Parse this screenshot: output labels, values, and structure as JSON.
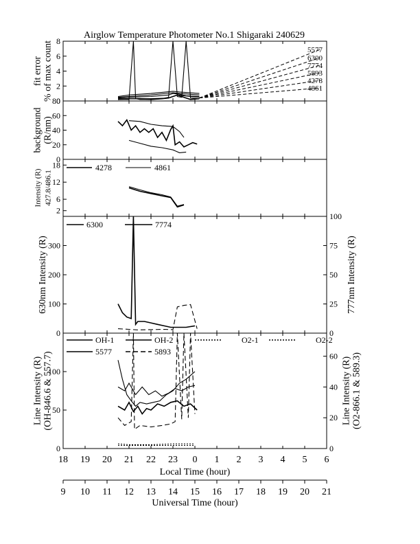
{
  "title": "Airglow Temperature Photometer No.1  Shigaraki  240629",
  "axes": {
    "local_time": {
      "label": "Local Time (hour)",
      "ticks": [
        "18",
        "19",
        "20",
        "21",
        "22",
        "23",
        "0",
        "1",
        "2",
        "3",
        "4",
        "5",
        "6"
      ]
    },
    "universal_time": {
      "label": "Universal Time (hour)",
      "ticks": [
        "9",
        "10",
        "11",
        "12",
        "13",
        "14",
        "15",
        "16",
        "17",
        "18",
        "19",
        "20",
        "21"
      ]
    }
  },
  "chart_data": [
    {
      "id": "fit_error",
      "type": "line",
      "ylabel_lines": [
        "fit error",
        "% of max count"
      ],
      "ylim": [
        0,
        8
      ],
      "yticks": [
        "0",
        "2",
        "4",
        "6",
        "8"
      ],
      "x_units": "local time hour (24+ = after midnight)",
      "legend_labels": [
        "5577",
        "6300",
        "7774",
        "5893",
        "4278",
        "4861"
      ],
      "series": [
        {
          "name": "5577",
          "x": [
            20.5,
            21.0,
            21.5,
            22.0,
            22.5,
            22.8,
            23.0,
            23.2,
            23.4,
            23.6,
            23.8,
            24.2
          ],
          "y": [
            0.2,
            0.3,
            0.3,
            0.2,
            0.3,
            0.4,
            0.6,
            0.8,
            0.6,
            0.4,
            0.2,
            0.3
          ]
        },
        {
          "name": "6300",
          "x": [
            20.5,
            21.0,
            21.2,
            21.3,
            21.5,
            22.0,
            22.5,
            22.8,
            23.0,
            23.2,
            23.4,
            23.6,
            23.8,
            24.2
          ],
          "y": [
            0.2,
            0.2,
            8.0,
            0.3,
            0.2,
            0.2,
            0.3,
            0.5,
            8.0,
            0.6,
            0.5,
            8.0,
            0.4,
            0.3
          ]
        },
        {
          "name": "7774",
          "x": [
            20.5,
            21.0,
            22.0,
            22.8,
            23.0,
            23.2,
            23.5,
            24.2
          ],
          "y": [
            0.3,
            0.3,
            0.3,
            0.4,
            0.6,
            0.8,
            0.7,
            0.5
          ]
        },
        {
          "name": "5893",
          "x": [
            20.5,
            21.0,
            22.0,
            22.8,
            23.0,
            23.3,
            23.6,
            24.2
          ],
          "y": [
            0.4,
            0.5,
            0.6,
            0.8,
            1.0,
            0.9,
            0.7,
            0.6
          ]
        },
        {
          "name": "4278",
          "x": [
            20.5,
            21.0,
            22.0,
            23.0,
            23.3,
            24.2
          ],
          "y": [
            0.5,
            0.6,
            0.8,
            1.1,
            1.0,
            0.8
          ]
        },
        {
          "name": "4861",
          "x": [
            20.5,
            21.0,
            22.0,
            23.0,
            23.3,
            24.2
          ],
          "y": [
            0.6,
            0.8,
            1.0,
            1.3,
            1.2,
            1.0
          ]
        }
      ]
    },
    {
      "id": "background",
      "type": "line",
      "ylabel_lines": [
        "background",
        "(R/nm)"
      ],
      "ylim": [
        0,
        80
      ],
      "yticks": [
        "0",
        "20",
        "40",
        "60",
        "80"
      ],
      "series": [
        {
          "name": "A",
          "x": [
            20.5,
            20.7,
            20.9,
            21.1,
            21.3,
            21.5,
            21.7,
            21.9,
            22.1,
            22.3,
            22.5,
            22.7,
            22.9,
            23.0,
            23.1,
            23.3,
            23.5,
            23.7,
            23.9,
            24.1
          ],
          "y": [
            52,
            46,
            54,
            40,
            46,
            37,
            42,
            37,
            42,
            30,
            37,
            26,
            41,
            46,
            20,
            24,
            17,
            20,
            23,
            21
          ]
        },
        {
          "name": "B",
          "x": [
            21.0,
            21.5,
            22.0,
            22.5,
            23.0,
            23.3,
            23.5
          ],
          "y": [
            53,
            52,
            48,
            46,
            45,
            38,
            30
          ]
        },
        {
          "name": "C",
          "x": [
            21.0,
            21.5,
            22.0,
            22.5,
            23.0,
            23.3,
            23.6
          ],
          "y": [
            26,
            22,
            18,
            16,
            13,
            9,
            10
          ]
        }
      ]
    },
    {
      "id": "ratio",
      "type": "line",
      "ylabel_lines": [
        "Intensity (R)",
        "427.8/486.1"
      ],
      "ylim": [
        0,
        20
      ],
      "yticks": [
        "2",
        "6",
        "12",
        "18"
      ],
      "yticks_values": [
        2,
        6,
        12,
        18
      ],
      "legend_labels": [
        "4278",
        "4861"
      ],
      "series": [
        {
          "name": "4278",
          "x": [
            21.0,
            21.5,
            22.0,
            22.5,
            22.9,
            23.2,
            23.5
          ],
          "y": [
            10,
            8.8,
            8,
            7.2,
            6.6,
            3.3,
            4.0
          ]
        },
        {
          "name": "4861",
          "x": [
            21.0,
            21.5,
            22.0,
            22.5,
            22.9,
            23.2,
            23.5
          ],
          "y": [
            10.4,
            9.3,
            8.3,
            7.6,
            6.8,
            3.6,
            4.2
          ]
        }
      ]
    },
    {
      "id": "red_green",
      "type": "line",
      "ylabel": "630nm Intensity (R)",
      "ylabel_right": "777nm Intensity (R)",
      "ylim": [
        0,
        400
      ],
      "yticks": [
        "0",
        "100",
        "200",
        "300"
      ],
      "ylim_right": [
        0,
        100
      ],
      "yticks_right": [
        "0",
        "25",
        "50",
        "75",
        "100"
      ],
      "legend_labels": [
        "6300",
        "7774"
      ],
      "series": [
        {
          "name": "6300",
          "x": [
            20.5,
            20.7,
            20.9,
            21.1,
            21.2,
            21.3,
            21.4,
            21.7,
            22.0,
            22.3,
            22.6,
            22.9,
            23.1,
            23.3,
            23.6,
            24.0
          ],
          "y": [
            100,
            70,
            55,
            50,
            400,
            30,
            40,
            40,
            35,
            30,
            25,
            20,
            20,
            20,
            20,
            25
          ]
        },
        {
          "name": "7774",
          "x": [
            20.5,
            21.0,
            21.4,
            22.0,
            22.6,
            23.0,
            23.2,
            23.5,
            23.8,
            24.1
          ],
          "y": [
            15,
            13,
            11,
            12,
            13,
            12,
            90,
            95,
            98,
            15
          ]
        }
      ]
    },
    {
      "id": "line_intensity",
      "type": "line",
      "ylabel_lines": [
        "Line Intensity (R)",
        "(OH-846.6 & 557.7)"
      ],
      "ylabel_right_lines": [
        "Line Intensity (R)",
        "(O2-866.1 & 589.3)"
      ],
      "ylim": [
        0,
        150
      ],
      "yticks": [
        "0",
        "50",
        "100"
      ],
      "ylim_right": [
        0,
        75
      ],
      "yticks_right": [
        "0",
        "20",
        "40",
        "60"
      ],
      "legend_labels": [
        "OH-1",
        "OH-2",
        "O2-1",
        "O2-2",
        "5577",
        "5893"
      ],
      "series": [
        {
          "name": "OH-1",
          "x": [
            20.5,
            20.8,
            21.0,
            21.2,
            21.4,
            21.6,
            21.8,
            22.0,
            22.3,
            22.6,
            22.9,
            23.2,
            23.5,
            23.8,
            24.1
          ],
          "y": [
            55,
            50,
            60,
            48,
            55,
            45,
            52,
            50,
            58,
            55,
            60,
            62,
            55,
            58,
            50
          ]
        },
        {
          "name": "OH-2",
          "x": [
            20.5,
            20.8,
            21.0,
            21.3,
            21.6,
            21.9,
            22.2,
            22.5,
            22.8,
            23.1,
            23.4,
            23.7,
            24.0
          ],
          "y": [
            80,
            75,
            85,
            70,
            80,
            70,
            75,
            68,
            72,
            78,
            75,
            80,
            82
          ]
        },
        {
          "name": "5577",
          "x": [
            20.5,
            20.7,
            20.9,
            21.1,
            21.3,
            21.5,
            21.8,
            22.1,
            22.4,
            22.7,
            23.0,
            23.3,
            23.6,
            23.8,
            24.0
          ],
          "y": [
            115,
            90,
            70,
            62,
            55,
            60,
            58,
            60,
            62,
            70,
            75,
            85,
            90,
            95,
            100
          ]
        },
        {
          "name": "5893",
          "x": [
            20.5,
            20.8,
            21.1,
            21.2,
            21.25,
            21.5,
            22.0,
            22.5,
            22.9,
            23.1,
            23.2,
            23.4,
            23.5,
            23.7,
            23.8,
            24.0
          ],
          "y": [
            40,
            30,
            35,
            150,
            25,
            30,
            28,
            30,
            32,
            35,
            150,
            38,
            150,
            40,
            150,
            45
          ]
        },
        {
          "name": "O2-1",
          "x": [
            20.5,
            21.0,
            22.0,
            23.0,
            24.0
          ],
          "y": [
            4,
            4,
            4,
            4,
            4
          ]
        },
        {
          "name": "O2-2",
          "x": [
            20.5,
            21.0,
            22.0,
            23.0,
            24.0
          ],
          "y": [
            6,
            5,
            5,
            6,
            6
          ]
        }
      ]
    }
  ]
}
